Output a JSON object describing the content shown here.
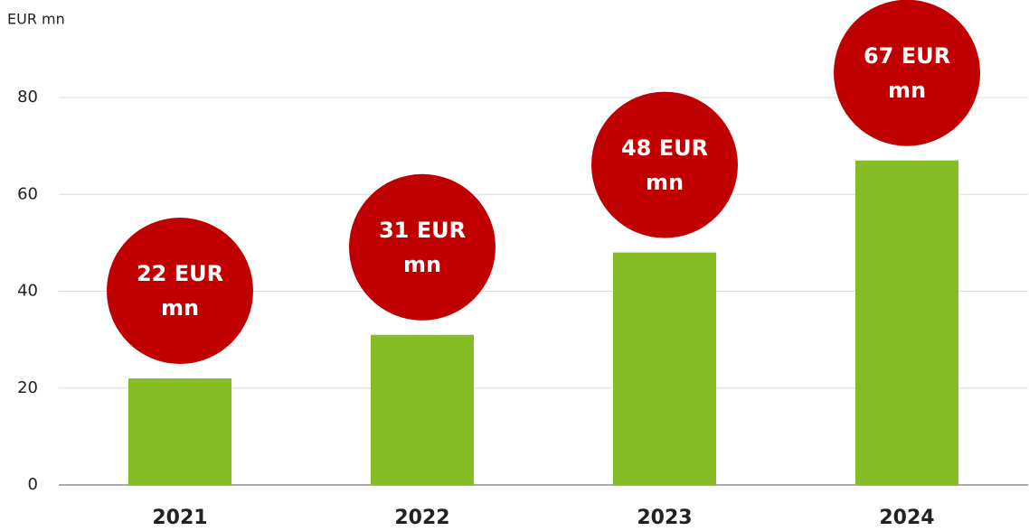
{
  "chart_data": {
    "type": "bar",
    "y_label": "EUR mn",
    "categories": [
      "2021",
      "2022",
      "2023",
      "2024"
    ],
    "values": [
      22,
      31,
      48,
      67
    ],
    "value_labels": [
      "22 EUR mn",
      "31 EUR mn",
      "48 EUR mn",
      "67 EUR mn"
    ],
    "color": "#86bc25",
    "label_color": "#c00000",
    "ylim": [
      0,
      80
    ],
    "yticks": [
      0,
      20,
      40,
      60,
      80
    ],
    "grid": true
  }
}
